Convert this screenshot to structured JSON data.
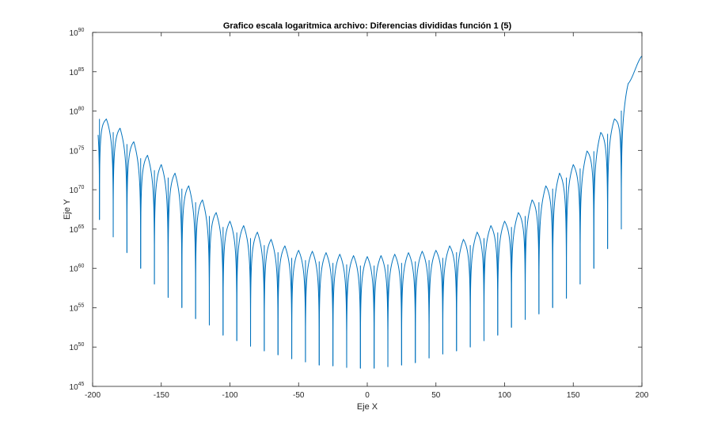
{
  "chart_data": {
    "type": "line",
    "title": "Grafico escala logaritmica archivo: Diferencias divididas función 1 (5)",
    "xlabel": "Eje X",
    "ylabel": "Eje Y",
    "xlim": [
      -200,
      200
    ],
    "ylim": [
      1e+45,
      1e+90
    ],
    "yscale": "log",
    "grid": false,
    "legend": "none",
    "x_ticks": [
      -200,
      -150,
      -100,
      -50,
      0,
      50,
      100,
      150,
      200
    ],
    "x_tick_labels": [
      "-200",
      "-150",
      "-100",
      "-50",
      "0",
      "50",
      "100",
      "150",
      "200"
    ],
    "y_ticks": [
      1e+45,
      1e+50,
      1e+55,
      1e+60,
      1e+65,
      1e+70,
      1e+75,
      1e+80,
      1e+85,
      1e+90
    ],
    "y_tick_labels": [
      {
        "base": "10",
        "exp": "45"
      },
      {
        "base": "10",
        "exp": "50"
      },
      {
        "base": "10",
        "exp": "55"
      },
      {
        "base": "10",
        "exp": "60"
      },
      {
        "base": "10",
        "exp": "65"
      },
      {
        "base": "10",
        "exp": "70"
      },
      {
        "base": "10",
        "exp": "75"
      },
      {
        "base": "10",
        "exp": "80"
      },
      {
        "base": "10",
        "exp": "85"
      },
      {
        "base": "10",
        "exp": "90"
      }
    ],
    "series": [
      {
        "color": "#0072bd",
        "description_points_log10y": [
          {
            "x": -200,
            "log10y": 82.0
          },
          {
            "x": -195,
            "log10y": 80.2
          },
          {
            "x": -190,
            "log10y": 79.0
          },
          {
            "x": -150,
            "log10y": 73.2
          },
          {
            "x": -100,
            "log10y": 66.0
          },
          {
            "x": -50,
            "log10y": 62.3
          },
          {
            "x": 0,
            "log10y": 61.5
          },
          {
            "x": 50,
            "log10y": 62.3
          },
          {
            "x": 100,
            "log10y": 66.0
          },
          {
            "x": 150,
            "log10y": 73.2
          },
          {
            "x": 180,
            "log10y": 79.0
          },
          {
            "x": 190,
            "log10y": 83.5
          },
          {
            "x": 200,
            "log10y": 87.0
          }
        ],
        "zeros_x": [
          -195,
          -185,
          -175,
          -165,
          -155,
          -145,
          -135,
          -125,
          -115,
          -105,
          -95,
          -85,
          -75,
          -65,
          -55,
          -45,
          -35,
          -25,
          -15,
          -5,
          5,
          15,
          25,
          35,
          45,
          55,
          65,
          75,
          85,
          95,
          105,
          115,
          125,
          135,
          145,
          155,
          165,
          175,
          185
        ],
        "zeros_log10y_min": [
          66.2,
          64.0,
          62.0,
          60.0,
          58.0,
          56.3,
          55.0,
          53.6,
          52.8,
          51.5,
          50.8,
          50.1,
          49.5,
          49.0,
          48.5,
          48.1,
          47.7,
          47.6,
          47.4,
          47.3,
          47.3,
          47.5,
          47.7,
          48.0,
          48.6,
          49.1,
          49.5,
          50.0,
          50.8,
          51.5,
          52.5,
          53.5,
          54.2,
          55.0,
          56.2,
          58.0,
          60.0,
          62.5,
          65.0
        ]
      }
    ]
  }
}
